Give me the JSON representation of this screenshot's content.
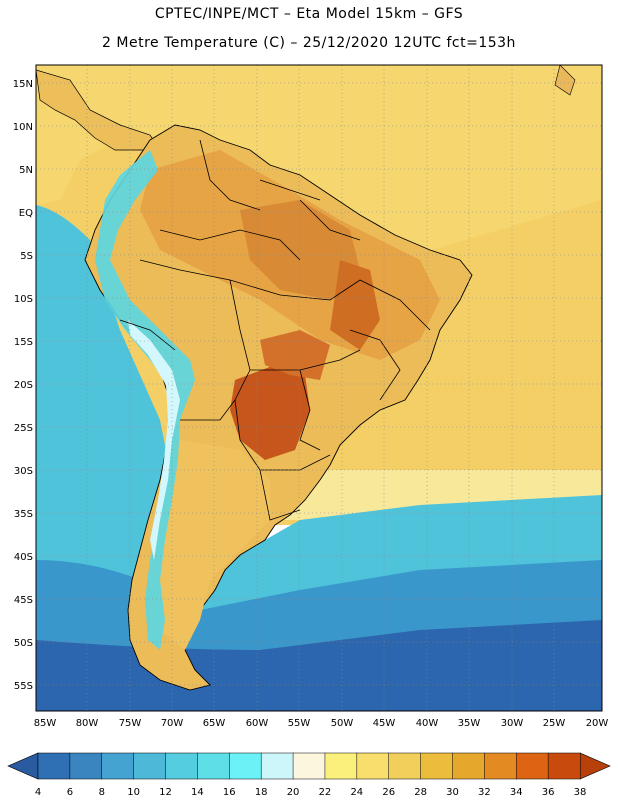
{
  "title": {
    "line1": "CPTEC/INPE/MCT –  Eta Model 15km – GFS",
    "line2": "2 Metre Temperature (C) – 25/12/2020 12UTC fct=153h"
  },
  "lat_labels": [
    "15N",
    "10N",
    "5N",
    "EQ",
    "5S",
    "10S",
    "15S",
    "20S",
    "25S",
    "30S",
    "35S",
    "40S",
    "45S",
    "50S",
    "55S"
  ],
  "lon_labels": [
    "85W",
    "80W",
    "75W",
    "70W",
    "65W",
    "60W",
    "55W",
    "50W",
    "45W",
    "40W",
    "35W",
    "30W",
    "25W",
    "20W"
  ],
  "colorbar": {
    "labels": [
      "4",
      "6",
      "8",
      "10",
      "12",
      "14",
      "16",
      "18",
      "20",
      "22",
      "24",
      "26",
      "28",
      "30",
      "32",
      "34",
      "36",
      "38"
    ],
    "colors": [
      "#2f6fb3",
      "#3a85c0",
      "#45a3d2",
      "#4db8d8",
      "#55cde0",
      "#5edfe8",
      "#6af2f6",
      "#cdf6fb",
      "#fcf6df",
      "#fcf07c",
      "#f8de6c",
      "#f2cf5b",
      "#ecbc3c",
      "#e6a82c",
      "#e48a22",
      "#dc6412",
      "#c84a0c"
    ],
    "arrow_left_color": "#2a5aa0",
    "arrow_right_color": "#b8400a"
  },
  "map_colors": {
    "ocean_north": "#f6d56c",
    "ocean_south_1": "#4ec3da",
    "ocean_south_2": "#2f7fc0",
    "ocean_south_3": "#2a5fa8",
    "land_base": "#eebc5a",
    "land_hot": "#d7782e",
    "land_hottest": "#c0501a",
    "andes": "#5ad8e6"
  }
}
